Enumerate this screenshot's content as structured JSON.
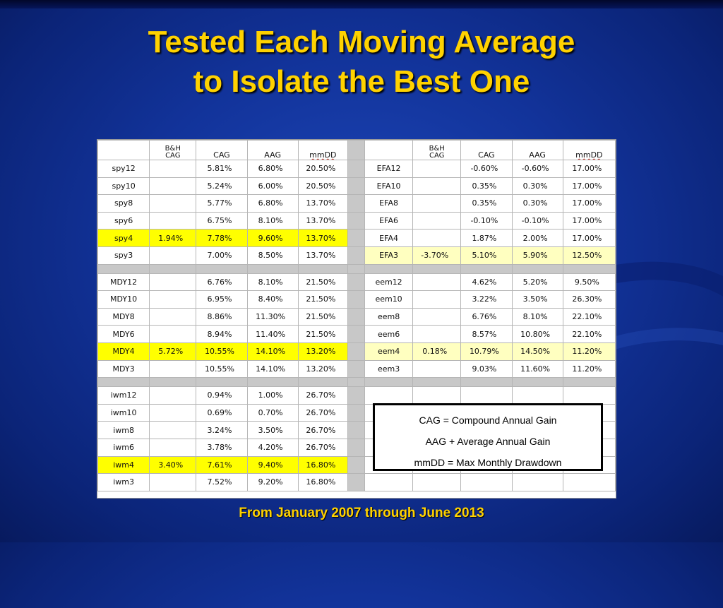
{
  "slide": {
    "title_line1": "Tested Each Moving Average",
    "title_line2": "to Isolate the Best One",
    "footer": "From January 2007 through June 2013"
  },
  "legend": {
    "line1": "CAG = Compound Annual Gain",
    "line2": "AAG + Average Annual Gain",
    "line3": "mmDD = Max Monthly Drawdown"
  },
  "colors": {
    "title": "#ffd200",
    "background": "#12339a",
    "symbol": "#e100d8",
    "highlight": "#ffff00",
    "highlight_light": "#ffffc0"
  },
  "headers": {
    "bh_top": "B&H",
    "bh_bottom": "CAG",
    "cag": "CAG",
    "aag": "AAG",
    "mmdd": "mmDD"
  },
  "left": {
    "groups": [
      [
        {
          "sym": "spy12",
          "bh": "",
          "cag": "5.81%",
          "aag": "6.80%",
          "mmdd": "20.50%",
          "hl": ""
        },
        {
          "sym": "spy10",
          "bh": "",
          "cag": "5.24%",
          "aag": "6.00%",
          "mmdd": "20.50%",
          "hl": ""
        },
        {
          "sym": "spy8",
          "bh": "",
          "cag": "5.77%",
          "aag": "6.80%",
          "mmdd": "13.70%",
          "hl": ""
        },
        {
          "sym": "spy6",
          "bh": "",
          "cag": "6.75%",
          "aag": "8.10%",
          "mmdd": "13.70%",
          "hl": ""
        },
        {
          "sym": "spy4",
          "bh": "1.94%",
          "cag": "7.78%",
          "aag": "9.60%",
          "mmdd": "13.70%",
          "hl": "Y"
        },
        {
          "sym": "spy3",
          "bh": "",
          "cag": "7.00%",
          "aag": "8.50%",
          "mmdd": "13.70%",
          "hl": ""
        }
      ],
      [
        {
          "sym": "MDY12",
          "bh": "",
          "cag": "6.76%",
          "aag": "8.10%",
          "mmdd": "21.50%",
          "hl": ""
        },
        {
          "sym": "MDY10",
          "bh": "",
          "cag": "6.95%",
          "aag": "8.40%",
          "mmdd": "21.50%",
          "hl": ""
        },
        {
          "sym": "MDY8",
          "bh": "",
          "cag": "8.86%",
          "aag": "11.30%",
          "mmdd": "21.50%",
          "hl": ""
        },
        {
          "sym": "MDY6",
          "bh": "",
          "cag": "8.94%",
          "aag": "11.40%",
          "mmdd": "21.50%",
          "hl": ""
        },
        {
          "sym": "MDY4",
          "bh": "5.72%",
          "cag": "10.55%",
          "aag": "14.10%",
          "mmdd": "13.20%",
          "hl": "Y"
        },
        {
          "sym": "MDY3",
          "bh": "",
          "cag": "10.55%",
          "aag": "14.10%",
          "mmdd": "13.20%",
          "hl": ""
        }
      ],
      [
        {
          "sym": "iwm12",
          "bh": "",
          "cag": "0.94%",
          "aag": "1.00%",
          "mmdd": "26.70%",
          "hl": ""
        },
        {
          "sym": "iwm10",
          "bh": "",
          "cag": "0.69%",
          "aag": "0.70%",
          "mmdd": "26.70%",
          "hl": ""
        },
        {
          "sym": "iwm8",
          "bh": "",
          "cag": "3.24%",
          "aag": "3.50%",
          "mmdd": "26.70%",
          "hl": ""
        },
        {
          "sym": "iwm6",
          "bh": "",
          "cag": "3.78%",
          "aag": "4.20%",
          "mmdd": "26.70%",
          "hl": ""
        },
        {
          "sym": "iwm4",
          "bh": "3.40%",
          "cag": "7.61%",
          "aag": "9.40%",
          "mmdd": "16.80%",
          "hl": "Y"
        },
        {
          "sym": "iwm3",
          "bh": "",
          "cag": "7.52%",
          "aag": "9.20%",
          "mmdd": "16.80%",
          "hl": ""
        }
      ]
    ]
  },
  "right": {
    "groups": [
      [
        {
          "sym": "EFA12",
          "bh": "",
          "cag": "-0.60%",
          "aag": "-0.60%",
          "mmdd": "17.00%",
          "hl": ""
        },
        {
          "sym": "EFA10",
          "bh": "",
          "cag": "0.35%",
          "aag": "0.30%",
          "mmdd": "17.00%",
          "hl": ""
        },
        {
          "sym": "EFA8",
          "bh": "",
          "cag": "0.35%",
          "aag": "0.30%",
          "mmdd": "17.00%",
          "hl": ""
        },
        {
          "sym": "EFA6",
          "bh": "",
          "cag": "-0.10%",
          "aag": "-0.10%",
          "mmdd": "17.00%",
          "hl": ""
        },
        {
          "sym": "EFA4",
          "bh": "",
          "cag": "1.87%",
          "aag": "2.00%",
          "mmdd": "17.00%",
          "hl": ""
        },
        {
          "sym": "EFA3",
          "bh": "-3.70%",
          "cag": "5.10%",
          "aag": "5.90%",
          "mmdd": "12.50%",
          "hl": "L"
        }
      ],
      [
        {
          "sym": "eem12",
          "bh": "",
          "cag": "4.62%",
          "aag": "5.20%",
          "mmdd": "9.50%",
          "hl": ""
        },
        {
          "sym": "eem10",
          "bh": "",
          "cag": "3.22%",
          "aag": "3.50%",
          "mmdd": "26.30%",
          "hl": ""
        },
        {
          "sym": "eem8",
          "bh": "",
          "cag": "6.76%",
          "aag": "8.10%",
          "mmdd": "22.10%",
          "hl": ""
        },
        {
          "sym": "eem6",
          "bh": "",
          "cag": "8.57%",
          "aag": "10.80%",
          "mmdd": "22.10%",
          "hl": ""
        },
        {
          "sym": "eem4",
          "bh": "0.18%",
          "cag": "10.79%",
          "aag": "14.50%",
          "mmdd": "11.20%",
          "hl": "L"
        },
        {
          "sym": "eem3",
          "bh": "",
          "cag": "9.03%",
          "aag": "11.60%",
          "mmdd": "11.20%",
          "hl": ""
        }
      ],
      [
        {
          "sym": "",
          "bh": "",
          "cag": "",
          "aag": "",
          "mmdd": "",
          "hl": ""
        },
        {
          "sym": "",
          "bh": "",
          "cag": "",
          "aag": "",
          "mmdd": "",
          "hl": ""
        },
        {
          "sym": "",
          "bh": "",
          "cag": "",
          "aag": "",
          "mmdd": "",
          "hl": ""
        },
        {
          "sym": "",
          "bh": "",
          "cag": "",
          "aag": "",
          "mmdd": "",
          "hl": ""
        },
        {
          "sym": "",
          "bh": "",
          "cag": "",
          "aag": "",
          "mmdd": "",
          "hl": ""
        },
        {
          "sym": "",
          "bh": "",
          "cag": "",
          "aag": "",
          "mmdd": "",
          "hl": ""
        }
      ]
    ]
  }
}
